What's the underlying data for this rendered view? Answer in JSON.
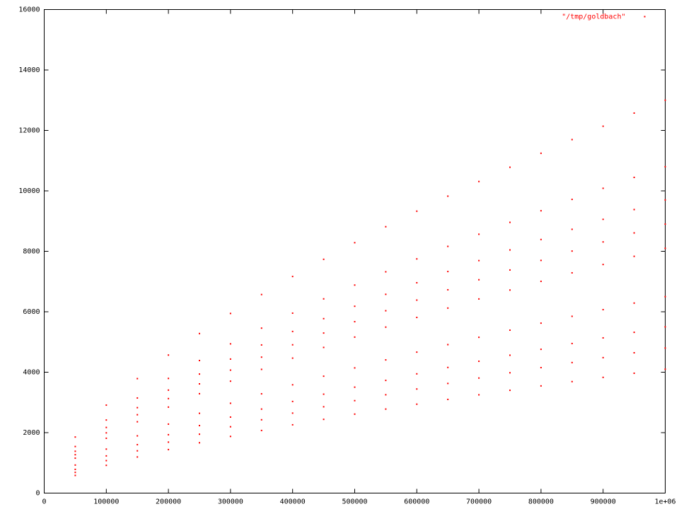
{
  "chart_data": {
    "type": "scatter",
    "series": [
      {
        "name": "\"/tmp/goldbach\"",
        "color": "#ff0000",
        "x": [
          50000,
          100000,
          150000,
          200000,
          250000,
          300000,
          350000,
          400000,
          450000,
          500000,
          550000,
          600000,
          650000,
          700000,
          750000,
          800000,
          850000,
          900000,
          950000,
          1000000,
          50000,
          100000,
          150000,
          200000,
          250000,
          300000,
          350000,
          400000,
          450000,
          500000,
          550000,
          600000,
          650000,
          700000,
          750000,
          800000,
          850000,
          900000,
          950000,
          1000000,
          50000,
          100000,
          150000,
          200000,
          250000,
          300000,
          350000,
          400000,
          450000,
          500000,
          550000,
          600000,
          650000,
          700000,
          750000,
          800000,
          850000,
          900000,
          950000,
          1000000,
          50000,
          100000,
          150000,
          200000,
          250000,
          300000,
          350000,
          400000,
          450000,
          500000,
          550000,
          600000,
          650000,
          700000,
          750000,
          800000,
          850000,
          900000,
          950000,
          1000000,
          50000,
          100000,
          150000,
          200000,
          250000,
          300000,
          350000,
          400000,
          450000,
          500000,
          550000,
          600000,
          650000,
          700000,
          750000,
          800000,
          850000,
          900000,
          950000,
          1000000,
          50000,
          100000,
          150000,
          200000,
          250000,
          300000,
          350000,
          400000,
          450000,
          500000,
          550000,
          600000,
          650000,
          700000,
          750000,
          800000,
          850000,
          900000,
          950000,
          1000000,
          50000,
          100000,
          150000,
          200000,
          250000,
          300000,
          350000,
          400000,
          450000,
          500000,
          550000,
          600000,
          650000,
          700000,
          750000,
          800000,
          850000,
          900000,
          950000,
          1000000,
          50000,
          100000,
          150000,
          200000,
          250000,
          300000,
          350000,
          400000,
          450000,
          500000,
          550000,
          600000,
          650000,
          700000,
          750000,
          800000,
          850000,
          900000,
          950000,
          1000000,
          50000,
          100000,
          150000,
          200000,
          250000,
          300000,
          350000,
          400000,
          450000,
          500000,
          550000,
          600000,
          650000,
          700000,
          750000,
          800000,
          850000,
          900000,
          950000,
          1000000
        ],
        "values": [
          1855,
          2911,
          3788,
          4567,
          5279,
          5944,
          6570,
          7167,
          7736,
          8285,
          8814,
          9328,
          9825,
          10310,
          10782,
          11245,
          11697,
          12139,
          12574,
          13000,
          1541,
          2418,
          3147,
          3794,
          4386,
          4938,
          5458,
          5954,
          6427,
          6883,
          7322,
          7749,
          8163,
          8565,
          8958,
          9342,
          9718,
          10085,
          10446,
          10800,
          1384,
          2172,
          2827,
          3408,
          3939,
          4435,
          4902,
          5348,
          5772,
          6182,
          6577,
          6960,
          7331,
          7693,
          8045,
          8391,
          8728,
          9058,
          9382,
          9700,
          1270,
          1993,
          2593,
          3127,
          3614,
          4069,
          4498,
          4907,
          5296,
          5672,
          6034,
          6386,
          6727,
          7059,
          7382,
          7699,
          8008,
          8311,
          8608,
          8900,
          1156,
          1814,
          2360,
          2846,
          3289,
          3703,
          4094,
          4466,
          4820,
          5162,
          5492,
          5812,
          6122,
          6424,
          6718,
          7007,
          7288,
          7564,
          7834,
          8100,
          928,
          1455,
          1894,
          2283,
          2640,
          2972,
          3285,
          3583,
          3868,
          4142,
          4407,
          4664,
          4913,
          5155,
          5391,
          5623,
          5849,
          6070,
          6287,
          6500,
          785,
          1231,
          1603,
          1932,
          2234,
          2515,
          2780,
          3032,
          3273,
          3505,
          3729,
          3946,
          4157,
          4362,
          4562,
          4758,
          4949,
          5136,
          5320,
          5500,
          685,
          1075,
          1399,
          1686,
          1949,
          2195,
          2426,
          2646,
          2856,
          3059,
          3254,
          3444,
          3628,
          3807,
          3981,
          4152,
          4319,
          4482,
          4643,
          4800,
          585,
          918,
          1195,
          1440,
          1665,
          1875,
          2072,
          2260,
          2440,
          2613,
          2780,
          2942,
          3099,
          3252,
          3401,
          3547,
          3689,
          3829,
          3966,
          4100
        ]
      }
    ],
    "xlim": [
      0,
      1000000
    ],
    "xticks": [
      0,
      100000,
      200000,
      300000,
      400000,
      500000,
      600000,
      700000,
      800000,
      900000,
      {
        "value": 1000000,
        "label": "1e+06"
      }
    ],
    "ylim": [
      0,
      16000
    ],
    "yticks": [
      0,
      2000,
      4000,
      6000,
      8000,
      10000,
      12000,
      14000,
      16000
    ],
    "grid": false,
    "legend": "top-right"
  }
}
